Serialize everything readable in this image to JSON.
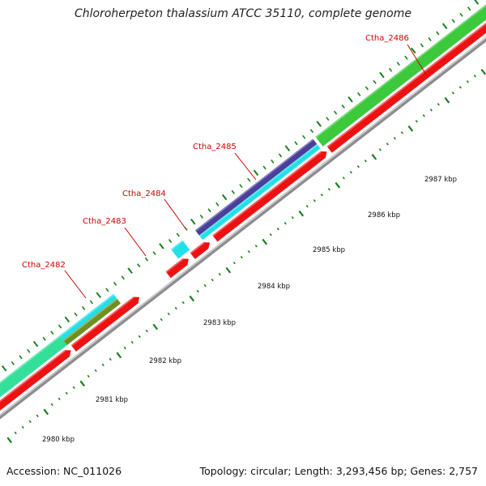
{
  "title": "Chloroherpeton thalassium ATCC 35110, complete genome",
  "footer": {
    "accession": "Accession: NC_011026",
    "summary": "Topology: circular; Length: 3,293,456 bp; Genes: 2,757"
  },
  "colors": {
    "backbone": "#9a9a9a",
    "cds": "#ee1111",
    "tick": "#1a7f1a",
    "label": "#d00000",
    "track_green": "#3cc93c",
    "track_seagreen": "#33e09a",
    "track_cyan": "#22e0e8",
    "track_indigo": "#4a3f9a",
    "track_olive": "#6f8f1f"
  },
  "gene_labels": [
    {
      "name": "Ctha_2482",
      "color": "#d00000"
    },
    {
      "name": "Ctha_2483",
      "color": "#d00000"
    },
    {
      "name": "Ctha_2484",
      "color": "#d00000"
    },
    {
      "name": "Ctha_2485",
      "color": "#d00000"
    },
    {
      "name": "Ctha_2486",
      "color": "#d00000"
    }
  ],
  "position_labels": [
    "2980 kbp",
    "2981 kbp",
    "2982 kbp",
    "2983 kbp",
    "2984 kbp",
    "2985 kbp",
    "2986 kbp",
    "2987 kbp"
  ]
}
